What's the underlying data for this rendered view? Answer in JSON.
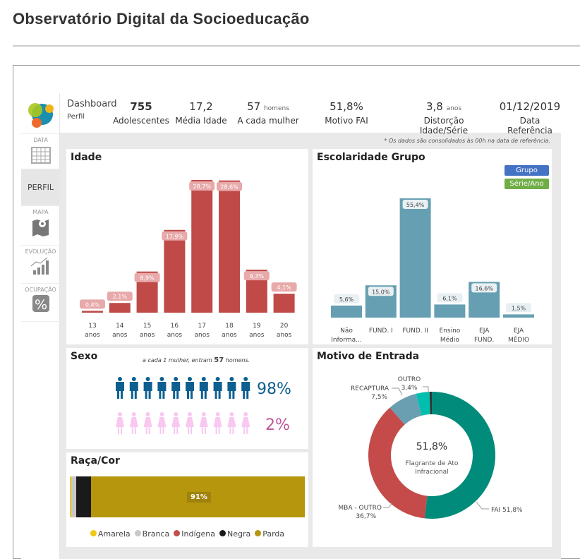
{
  "page_title": "Observatório Digital da Socioeducação",
  "sidebar": {
    "items": [
      {
        "label": "DATA",
        "icon": "calendar-icon"
      },
      {
        "label": "PERFIL",
        "active": true
      },
      {
        "label": "MAPA",
        "icon": "map-pin-icon"
      },
      {
        "label": "EVOLUÇÃO",
        "icon": "growth-chart-icon"
      },
      {
        "label": "OCUPAÇÃO",
        "icon": "percent-icon"
      }
    ]
  },
  "header": {
    "title": "Dashboard",
    "subtitle": "Perfil",
    "kpis": [
      {
        "value": "755",
        "label": "Adolescentes"
      },
      {
        "value": "17,2",
        "label": "Média Idade"
      },
      {
        "value": "57",
        "unit": "homens",
        "label": "A cada mulher"
      },
      {
        "value": "51,8%",
        "label": "Motivo FAI"
      },
      {
        "value": "3,8",
        "unit": "anos",
        "label": "Distorção Idade/Série"
      },
      {
        "value": "01/12/2019",
        "label": "Data Referência"
      }
    ]
  },
  "footnote": "* Os dados são consolidados às 00h na data de referência.",
  "sexo": {
    "title": "Sexo",
    "caption_pre": "a cada 1 mulher, entram",
    "caption_num": "57",
    "caption_post": "homens.",
    "male_pct": "98%",
    "female_pct": "2%",
    "colors": {
      "male": "#0d5f8f",
      "female": "#f8c8f0"
    }
  },
  "raca": {
    "title": "Raça/Cor",
    "bar_label": "91%",
    "legend": [
      {
        "label": "Amarela",
        "color": "#f2c811",
        "value": 0.5
      },
      {
        "label": "Branca",
        "color": "#c8c8c8",
        "value": 2.3
      },
      {
        "label": "Indígena",
        "color": "#c0504d",
        "value": 0
      },
      {
        "label": "Negra",
        "color": "#1a1a1a",
        "value": 6.2
      },
      {
        "label": "Parda",
        "color": "#b5960c",
        "value": 91
      }
    ]
  },
  "chart_data": [
    {
      "type": "bar",
      "title": "Idade",
      "categories": [
        "13 anos",
        "14 anos",
        "15 anos",
        "16 anos",
        "17 anos",
        "18 anos",
        "19 anos",
        "20 anos"
      ],
      "cat_lines": [
        [
          "13",
          "anos"
        ],
        [
          "14",
          "anos"
        ],
        [
          "15",
          "anos"
        ],
        [
          "16",
          "anos"
        ],
        [
          "17",
          "anos"
        ],
        [
          "18",
          "anos"
        ],
        [
          "19",
          "anos"
        ],
        [
          "20",
          "anos"
        ]
      ],
      "values": [
        0.4,
        2.1,
        8.9,
        17.9,
        28.7,
        28.6,
        9.3,
        4.1
      ],
      "labels": [
        "0,4%",
        "2,1%",
        "8,9%",
        "17,9%",
        "28,7%",
        "28,6%",
        "9,3%",
        "4,1%"
      ],
      "color": "#bf4a48"
    },
    {
      "type": "bar",
      "title": "Escolaridade Grupo",
      "buttons": [
        "Grupo",
        "Série/Ano"
      ],
      "categories": [
        "Não Informa...",
        "FUND. I",
        "FUND. II",
        "Ensino Médio",
        "EJA FUND.",
        "EJA MÉDIO"
      ],
      "cat_lines": [
        [
          "Não",
          "Informa..."
        ],
        [
          "FUND. I"
        ],
        [
          "FUND. II"
        ],
        [
          "Ensino",
          "Médio"
        ],
        [
          "EJA",
          "FUND."
        ],
        [
          "EJA",
          "MÉDIO"
        ]
      ],
      "values": [
        5.6,
        15.0,
        55.4,
        6.1,
        16.6,
        1.5
      ],
      "labels": [
        "5,6%",
        "15,0%",
        "55,4%",
        "6,1%",
        "16,6%",
        "1,5%"
      ],
      "color": "#659fb1"
    },
    {
      "type": "pie",
      "title": "Motivo de Entrada",
      "center_value": "51,8%",
      "center_label": [
        "Flagrante de Ato",
        "Infracional"
      ],
      "slices": [
        {
          "name": "FAI",
          "value": 51.8,
          "label": "FAI 51,8%",
          "color": "#008b7a"
        },
        {
          "name": "MBA - OUTRO",
          "value": 36.7,
          "label": [
            "MBA - OUTRO",
            "36,7%"
          ],
          "color": "#c44b49"
        },
        {
          "name": "RECAPTURA",
          "value": 7.5,
          "label": [
            "RECAPTURA",
            "7,5%"
          ],
          "color": "#6a9fb1"
        },
        {
          "name": "OUTRO",
          "value": 3.4,
          "label": [
            "OUTRO",
            "3,4%"
          ],
          "color": "#00bfae"
        }
      ]
    }
  ]
}
